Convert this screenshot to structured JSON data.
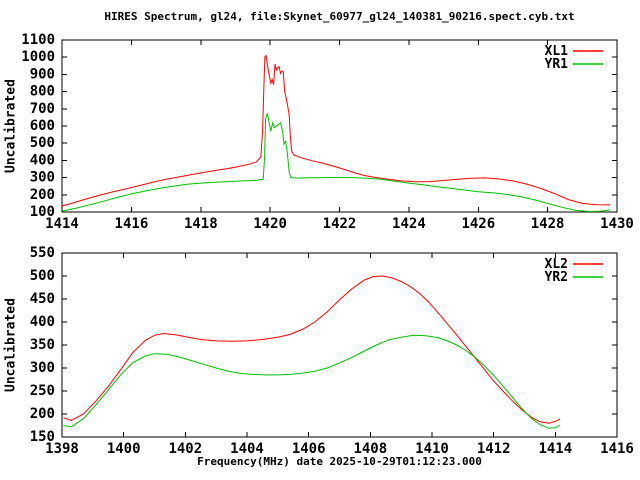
{
  "title": "HIRES Spectrum, gl24, file:Skynet_60977_gl24_140381_90216.spect.cyb.txt",
  "colors": {
    "line_red": "#ff0000",
    "line_green": "#00c000",
    "axis": "#000000",
    "background": "#ffffff"
  },
  "chart_data": [
    {
      "type": "line",
      "title": "",
      "ylabel": "Uncalibrated",
      "xlabel": "",
      "xlim": [
        1414,
        1430
      ],
      "ylim": [
        100,
        1100
      ],
      "xticks": [
        1414,
        1416,
        1418,
        1420,
        1422,
        1424,
        1426,
        1428,
        1430
      ],
      "yticks": [
        100,
        200,
        300,
        400,
        500,
        600,
        700,
        800,
        900,
        1000,
        1100
      ],
      "grid": false,
      "legend_position": "top-right",
      "series": [
        {
          "name": "XL1",
          "color": "#ff0000",
          "points": [
            [
              1414.0,
              135
            ],
            [
              1414.3,
              152
            ],
            [
              1414.6,
              170
            ],
            [
              1415.0,
              193
            ],
            [
              1415.4,
              214
            ],
            [
              1415.8,
              232
            ],
            [
              1416.2,
              252
            ],
            [
              1416.6,
              272
            ],
            [
              1417.0,
              290
            ],
            [
              1417.4,
              305
            ],
            [
              1417.8,
              320
            ],
            [
              1418.2,
              334
            ],
            [
              1418.6,
              347
            ],
            [
              1419.0,
              360
            ],
            [
              1419.4,
              378
            ],
            [
              1419.6,
              390
            ],
            [
              1419.73,
              420
            ],
            [
              1419.78,
              560
            ],
            [
              1419.82,
              830
            ],
            [
              1419.85,
              1003
            ],
            [
              1419.88,
              1010
            ],
            [
              1419.92,
              955
            ],
            [
              1419.97,
              900
            ],
            [
              1420.02,
              850
            ],
            [
              1420.06,
              870
            ],
            [
              1420.1,
              840
            ],
            [
              1420.14,
              960
            ],
            [
              1420.18,
              925
            ],
            [
              1420.22,
              940
            ],
            [
              1420.26,
              945
            ],
            [
              1420.3,
              906
            ],
            [
              1420.34,
              920
            ],
            [
              1420.38,
              912
            ],
            [
              1420.42,
              800
            ],
            [
              1420.46,
              765
            ],
            [
              1420.5,
              722
            ],
            [
              1420.55,
              665
            ],
            [
              1420.58,
              550
            ],
            [
              1420.62,
              455
            ],
            [
              1420.68,
              432
            ],
            [
              1420.9,
              415
            ],
            [
              1421.2,
              398
            ],
            [
              1421.5,
              385
            ],
            [
              1421.8,
              368
            ],
            [
              1422.1,
              350
            ],
            [
              1422.4,
              330
            ],
            [
              1422.7,
              313
            ],
            [
              1423.0,
              302
            ],
            [
              1423.4,
              290
            ],
            [
              1423.8,
              281
            ],
            [
              1424.2,
              276
            ],
            [
              1424.6,
              277
            ],
            [
              1425.0,
              283
            ],
            [
              1425.4,
              290
            ],
            [
              1425.8,
              296
            ],
            [
              1426.2,
              298
            ],
            [
              1426.6,
              292
            ],
            [
              1427.0,
              281
            ],
            [
              1427.4,
              262
            ],
            [
              1427.8,
              237
            ],
            [
              1428.2,
              207
            ],
            [
              1428.6,
              172
            ],
            [
              1429.0,
              150
            ],
            [
              1429.4,
              142
            ],
            [
              1429.8,
              141
            ]
          ]
        },
        {
          "name": "YR1",
          "color": "#00c000",
          "points": [
            [
              1414.0,
              105
            ],
            [
              1414.4,
              122
            ],
            [
              1414.8,
              142
            ],
            [
              1415.2,
              163
            ],
            [
              1415.6,
              185
            ],
            [
              1416.0,
              205
            ],
            [
              1416.4,
              222
            ],
            [
              1416.8,
              237
            ],
            [
              1417.2,
              250
            ],
            [
              1417.6,
              261
            ],
            [
              1418.0,
              268
            ],
            [
              1418.4,
              273
            ],
            [
              1418.8,
              277
            ],
            [
              1419.2,
              281
            ],
            [
              1419.6,
              284
            ],
            [
              1419.8,
              290
            ],
            [
              1419.84,
              420
            ],
            [
              1419.87,
              640
            ],
            [
              1419.92,
              674
            ],
            [
              1419.97,
              620
            ],
            [
              1420.02,
              570
            ],
            [
              1420.07,
              618
            ],
            [
              1420.12,
              590
            ],
            [
              1420.18,
              600
            ],
            [
              1420.24,
              608
            ],
            [
              1420.3,
              618
            ],
            [
              1420.36,
              570
            ],
            [
              1420.4,
              495
            ],
            [
              1420.45,
              512
            ],
            [
              1420.5,
              435
            ],
            [
              1420.55,
              330
            ],
            [
              1420.6,
              300
            ],
            [
              1420.8,
              297
            ],
            [
              1421.2,
              299
            ],
            [
              1421.6,
              300
            ],
            [
              1422.0,
              301
            ],
            [
              1422.4,
              300
            ],
            [
              1422.8,
              296
            ],
            [
              1423.2,
              290
            ],
            [
              1423.6,
              279
            ],
            [
              1424.0,
              268
            ],
            [
              1424.4,
              258
            ],
            [
              1424.8,
              247
            ],
            [
              1425.2,
              238
            ],
            [
              1425.6,
              228
            ],
            [
              1426.0,
              218
            ],
            [
              1426.4,
              212
            ],
            [
              1426.8,
              203
            ],
            [
              1427.2,
              190
            ],
            [
              1427.6,
              172
            ],
            [
              1428.0,
              150
            ],
            [
              1428.4,
              128
            ],
            [
              1428.8,
              110
            ],
            [
              1429.2,
              103
            ],
            [
              1429.5,
              104
            ],
            [
              1429.8,
              112
            ]
          ]
        }
      ]
    },
    {
      "type": "line",
      "title": "",
      "ylabel": "Uncalibrated",
      "xlabel": "Frequency(MHz) date 2025-10-29T01:12:23.000",
      "xlim": [
        1398,
        1416
      ],
      "ylim": [
        150,
        550
      ],
      "xticks": [
        1398,
        1400,
        1402,
        1404,
        1406,
        1408,
        1410,
        1412,
        1414,
        1416
      ],
      "yticks": [
        150,
        200,
        250,
        300,
        350,
        400,
        450,
        500,
        550
      ],
      "grid": false,
      "legend_position": "top-right",
      "series": [
        {
          "name": "XL2",
          "color": "#ff0000",
          "points": [
            [
              1398.05,
              192
            ],
            [
              1398.3,
              186
            ],
            [
              1398.7,
              200
            ],
            [
              1399.1,
              228
            ],
            [
              1399.5,
              260
            ],
            [
              1399.9,
              296
            ],
            [
              1400.3,
              334
            ],
            [
              1400.7,
              360
            ],
            [
              1401.0,
              371
            ],
            [
              1401.3,
              375
            ],
            [
              1401.7,
              372
            ],
            [
              1402.1,
              367
            ],
            [
              1402.5,
              362
            ],
            [
              1403.0,
              359
            ],
            [
              1403.5,
              358
            ],
            [
              1404.0,
              359
            ],
            [
              1404.5,
              362
            ],
            [
              1405.0,
              367
            ],
            [
              1405.4,
              373
            ],
            [
              1405.8,
              384
            ],
            [
              1406.2,
              400
            ],
            [
              1406.6,
              422
            ],
            [
              1407.0,
              448
            ],
            [
              1407.4,
              472
            ],
            [
              1407.8,
              491
            ],
            [
              1408.1,
              499
            ],
            [
              1408.4,
              500
            ],
            [
              1408.7,
              496
            ],
            [
              1409.0,
              488
            ],
            [
              1409.3,
              477
            ],
            [
              1409.6,
              462
            ],
            [
              1409.9,
              443
            ],
            [
              1410.2,
              420
            ],
            [
              1410.5,
              396
            ],
            [
              1410.8,
              372
            ],
            [
              1411.1,
              347
            ],
            [
              1411.4,
              322
            ],
            [
              1411.7,
              297
            ],
            [
              1412.0,
              272
            ],
            [
              1412.3,
              250
            ],
            [
              1412.6,
              229
            ],
            [
              1412.9,
              210
            ],
            [
              1413.2,
              194
            ],
            [
              1413.5,
              183
            ],
            [
              1413.8,
              180
            ],
            [
              1414.0,
              184
            ],
            [
              1414.15,
              189
            ]
          ]
        },
        {
          "name": "YR2",
          "color": "#00c000",
          "points": [
            [
              1398.05,
              175
            ],
            [
              1398.3,
              172
            ],
            [
              1398.7,
              190
            ],
            [
              1399.1,
              220
            ],
            [
              1399.5,
              252
            ],
            [
              1399.9,
              285
            ],
            [
              1400.3,
              312
            ],
            [
              1400.7,
              326
            ],
            [
              1401.0,
              331
            ],
            [
              1401.4,
              330
            ],
            [
              1401.8,
              324
            ],
            [
              1402.2,
              316
            ],
            [
              1402.6,
              308
            ],
            [
              1403.0,
              300
            ],
            [
              1403.4,
              293
            ],
            [
              1403.8,
              288
            ],
            [
              1404.2,
              286
            ],
            [
              1404.6,
              285
            ],
            [
              1405.0,
              285
            ],
            [
              1405.4,
              286
            ],
            [
              1405.8,
              289
            ],
            [
              1406.2,
              293
            ],
            [
              1406.6,
              300
            ],
            [
              1407.0,
              311
            ],
            [
              1407.4,
              323
            ],
            [
              1407.8,
              337
            ],
            [
              1408.2,
              350
            ],
            [
              1408.6,
              361
            ],
            [
              1409.0,
              367
            ],
            [
              1409.4,
              371
            ],
            [
              1409.8,
              370
            ],
            [
              1410.2,
              366
            ],
            [
              1410.5,
              359
            ],
            [
              1410.8,
              350
            ],
            [
              1411.1,
              338
            ],
            [
              1411.4,
              323
            ],
            [
              1411.7,
              305
            ],
            [
              1412.0,
              284
            ],
            [
              1412.3,
              261
            ],
            [
              1412.6,
              237
            ],
            [
              1412.9,
              213
            ],
            [
              1413.2,
              192
            ],
            [
              1413.5,
              177
            ],
            [
              1413.8,
              169
            ],
            [
              1414.0,
              170
            ],
            [
              1414.15,
              176
            ]
          ]
        }
      ]
    }
  ]
}
